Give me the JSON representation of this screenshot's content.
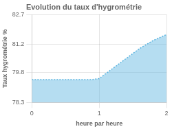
{
  "chart_data": {
    "type": "area",
    "title": "Evolution du taux d'hygrométrie",
    "xlabel": "heure par heure",
    "ylabel": "Taux hygrométrie %",
    "x": [
      0,
      0.1,
      0.2,
      0.3,
      0.4,
      0.5,
      0.6,
      0.7,
      0.8,
      0.9,
      1.0,
      1.1,
      1.2,
      1.3,
      1.4,
      1.5,
      1.6,
      1.7,
      1.8,
      1.9,
      2.0
    ],
    "values": [
      79.45,
      79.45,
      79.45,
      79.45,
      79.45,
      79.45,
      79.45,
      79.45,
      79.45,
      79.45,
      79.5,
      79.75,
      80.0,
      80.25,
      80.5,
      80.75,
      81.0,
      81.2,
      81.4,
      81.55,
      81.7
    ],
    "color": "#5ab4e0",
    "line_style": "dotted",
    "xlim": [
      0,
      2
    ],
    "ylim": [
      78.3,
      82.7
    ],
    "xticks": [
      0,
      1,
      2
    ],
    "yticks": [
      78.3,
      79.8,
      81.2,
      82.7
    ],
    "grid": true
  }
}
